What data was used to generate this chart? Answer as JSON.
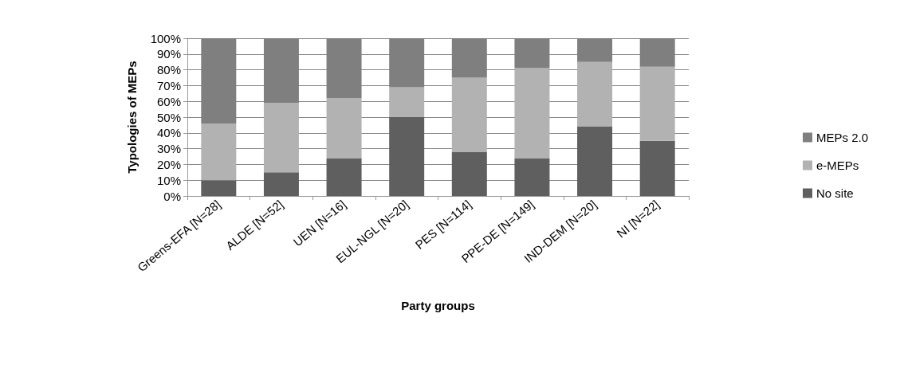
{
  "chart_data": {
    "type": "bar",
    "stacked": true,
    "xlabel": "Party groups",
    "ylabel": "Typologies of MEPs",
    "categories": [
      "Greens-EFA [N=28]",
      "ALDE [N=52]",
      "UEN [N=16]",
      "EUL-NGL [N=20]",
      "PES [N=114]",
      "PPE-DE [N=149]",
      "IND-DEM [N=20]",
      "NI [N=22]"
    ],
    "series": [
      {
        "name": "No site",
        "color": "#5f5f5f",
        "values": [
          10,
          15,
          24,
          50,
          28,
          24,
          44,
          35
        ]
      },
      {
        "name": "e-MEPs",
        "color": "#b2b2b2",
        "values": [
          36,
          44,
          38,
          19,
          47,
          57,
          41,
          47
        ]
      },
      {
        "name": "MEPs 2.0",
        "color": "#7f7f7f",
        "values": [
          54,
          41,
          38,
          31,
          25,
          19,
          15,
          18
        ]
      }
    ],
    "ylim": [
      0,
      100
    ],
    "yticks": [
      {
        "value": 0,
        "label": "0%"
      },
      {
        "value": 10,
        "label": "10%"
      },
      {
        "value": 20,
        "label": "20%"
      },
      {
        "value": 30,
        "label": "30%"
      },
      {
        "value": 40,
        "label": "40%"
      },
      {
        "value": 50,
        "label": "50%"
      },
      {
        "value": 60,
        "label": "60%"
      },
      {
        "value": 70,
        "label": "70%"
      },
      {
        "value": 80,
        "label": "80%"
      },
      {
        "value": 90,
        "label": "90%"
      },
      {
        "value": 100,
        "label": "100%"
      }
    ],
    "grid": "y",
    "legend": "right"
  }
}
